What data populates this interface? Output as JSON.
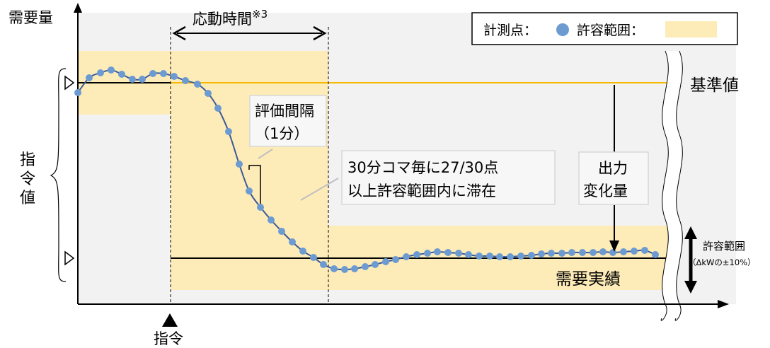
{
  "labels": {
    "y_axis": "需要量",
    "response_time": "応動時間",
    "response_time_note": "※3",
    "legend_points": "計測点：",
    "legend_range": "許容範囲：",
    "baseline": "基準値",
    "eval_interval_line1": "評価間隔",
    "eval_interval_line2": "（1分）",
    "condition_line1": "30分コマ毎に27/30点",
    "condition_line2": "以上許容範囲内に滞在",
    "output_change_line1": "出力",
    "output_change_line2": "変化量",
    "command_value": [
      "指",
      "令",
      "値"
    ],
    "tolerance_line1": "許容範囲",
    "tolerance_line2": "（ΔkWの±10%）",
    "actual_demand": "需要実績",
    "command": "指令"
  },
  "colors": {
    "band": "#fdebb8",
    "point": "#6c9bd2",
    "curve": "#3d5a99",
    "baseline_line": "#f5b800",
    "gray_bg": "#f2f2f2"
  }
}
